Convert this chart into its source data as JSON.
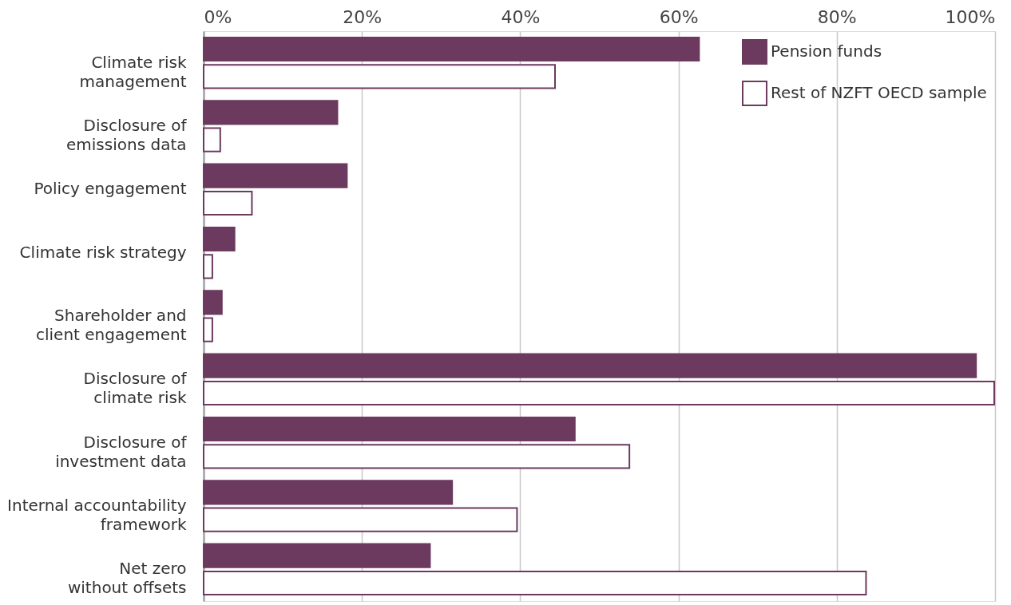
{
  "chart_data": {
    "type": "bar",
    "orientation": "horizontal",
    "categories": [
      "Climate risk\nmanagement",
      "Disclosure of\nemissions data",
      "Policy engagement",
      "Climate risk strategy",
      "Shareholder and\nclient engagement",
      "Disclosure of\nclimate risk",
      "Disclosure of\ninvestment data",
      "Internal accountability\nframework",
      "Net zero\nwithout offsets"
    ],
    "series": [
      {
        "name": "Pension funds",
        "color": "#6b3a5e",
        "values": [
          62.6,
          16.9,
          18.1,
          3.9,
          2.3,
          97.6,
          46.9,
          31.4,
          28.6
        ]
      },
      {
        "name": "Rest of NZFT OECD sample",
        "color": "#ffffff",
        "values": [
          44.4,
          2.1,
          6.1,
          1.1,
          1.1,
          99.9,
          53.8,
          39.6,
          83.7
        ]
      }
    ],
    "xlim": [
      0,
      100
    ],
    "xticks": [
      {
        "value": 0,
        "label": "0%"
      },
      {
        "value": 20,
        "label": "20%"
      },
      {
        "value": 40,
        "label": "40%"
      },
      {
        "value": 60,
        "label": "60%"
      },
      {
        "value": 80,
        "label": "80%"
      },
      {
        "value": 100,
        "label": "100%"
      }
    ],
    "grid": "x",
    "legend": "top right"
  }
}
